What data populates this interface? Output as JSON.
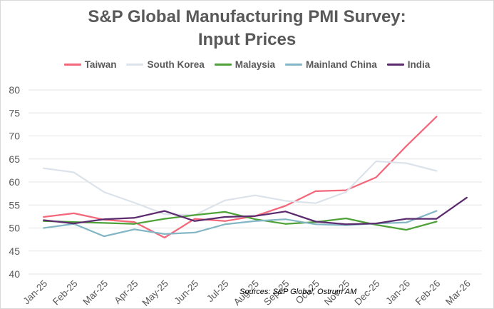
{
  "chart_data": {
    "type": "line",
    "title_line1": "S&P Global Manufacturing PMI Survey:",
    "title_line2": "Input Prices",
    "xlabel": "",
    "ylabel": "",
    "ylim": [
      40,
      80
    ],
    "yticks": [
      "40",
      "45",
      "50",
      "55",
      "60",
      "65",
      "70",
      "75",
      "80"
    ],
    "grid": true,
    "legend_position": "top",
    "categories": [
      "Jan-25",
      "Feb-25",
      "Mar-25",
      "Apr-25",
      "May-25",
      "Jun-25",
      "Jul-25",
      "Aug-25",
      "Sep-25",
      "Oct-25",
      "Nov-25",
      "Dec-25",
      "Jan-26",
      "Feb-26",
      "Mar-26"
    ],
    "series": [
      {
        "name": "Taiwan",
        "color": "#f4677a",
        "values": [
          52.4,
          53.2,
          51.8,
          51.3,
          47.9,
          52.0,
          51.5,
          52.6,
          54.8,
          58.0,
          58.2,
          61.0,
          67.8,
          74.2,
          null
        ]
      },
      {
        "name": "South Korea",
        "color": "#dde3ea",
        "values": [
          63.0,
          62.1,
          57.8,
          55.5,
          53.0,
          52.8,
          56.0,
          57.1,
          55.9,
          55.4,
          57.8,
          64.5,
          64.1,
          62.4,
          null
        ]
      },
      {
        "name": "Malaysia",
        "color": "#4ea238",
        "values": [
          51.5,
          51.3,
          51.1,
          50.9,
          52.0,
          52.8,
          53.5,
          51.9,
          50.9,
          51.3,
          52.1,
          50.7,
          49.6,
          51.4,
          null
        ]
      },
      {
        "name": "Mainland China",
        "color": "#84b7c5",
        "values": [
          50.0,
          50.9,
          48.2,
          49.7,
          48.7,
          49.0,
          50.8,
          51.5,
          51.9,
          50.8,
          50.6,
          51.0,
          51.2,
          53.7,
          null
        ]
      },
      {
        "name": "India",
        "color": "#5b2b6e",
        "values": [
          51.7,
          51.0,
          51.9,
          52.2,
          53.7,
          51.5,
          52.4,
          52.6,
          53.6,
          51.4,
          50.8,
          51.0,
          52.0,
          52.0,
          56.6
        ]
      }
    ],
    "source": "Sources: S&P Global, Ostrum AM"
  }
}
